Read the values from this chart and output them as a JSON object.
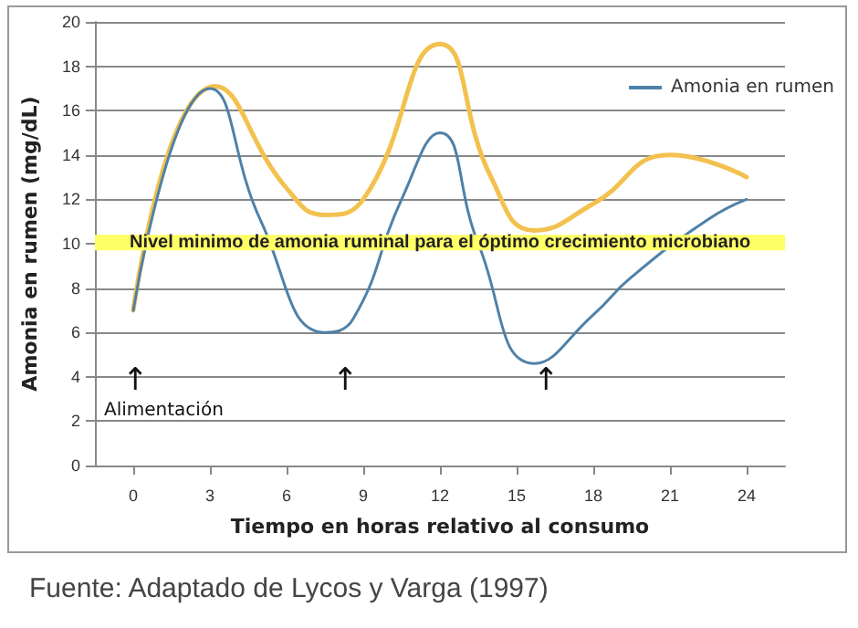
{
  "chart_data": {
    "type": "line",
    "xlabel": "Tiempo en horas relativo al consumo",
    "ylabel": "Amonia en rumen (mg/dL)",
    "xlim": [
      -1.5,
      25.5
    ],
    "xticks": [
      0,
      3,
      6,
      9,
      12,
      15,
      18,
      21,
      24
    ],
    "ylim": [
      0,
      20
    ],
    "yticks": [
      0,
      2,
      4,
      6,
      8,
      10,
      12,
      14,
      16,
      18,
      20
    ],
    "grid": "y",
    "legend": "top right",
    "marker": "none",
    "line_style": "solid",
    "series": [
      {
        "name": "Amonia en rumen",
        "color": "#4f81a8",
        "x": [
          0,
          3,
          5,
          7.5,
          8.6,
          10.5,
          12,
          13.5,
          15.7,
          18,
          19.5,
          22.5,
          24
        ],
        "values": [
          7,
          17,
          11,
          6,
          6.6,
          12,
          15,
          10,
          4.6,
          6.8,
          8.5,
          11.1,
          12
        ]
      },
      {
        "color": "#f2c14e",
        "x": [
          0,
          3.2,
          6,
          7.5,
          9,
          12,
          14,
          15.7,
          18,
          21,
          24
        ],
        "values": [
          7,
          17.1,
          12.5,
          11.3,
          12,
          19,
          13,
          10.6,
          11.8,
          14,
          13
        ]
      }
    ],
    "bands": [
      {
        "axis": "y",
        "from": 9.7,
        "to": 10.4,
        "label": "Nivel minimo de amonia ruminal para el óptimo crecimiento microbiano",
        "color": "#ffff66"
      }
    ],
    "annotations": [
      "Alimentación",
      "↑",
      "↑",
      "↑",
      "Fuente: Adaptado de Lycos y Varga (1997)"
    ]
  }
}
